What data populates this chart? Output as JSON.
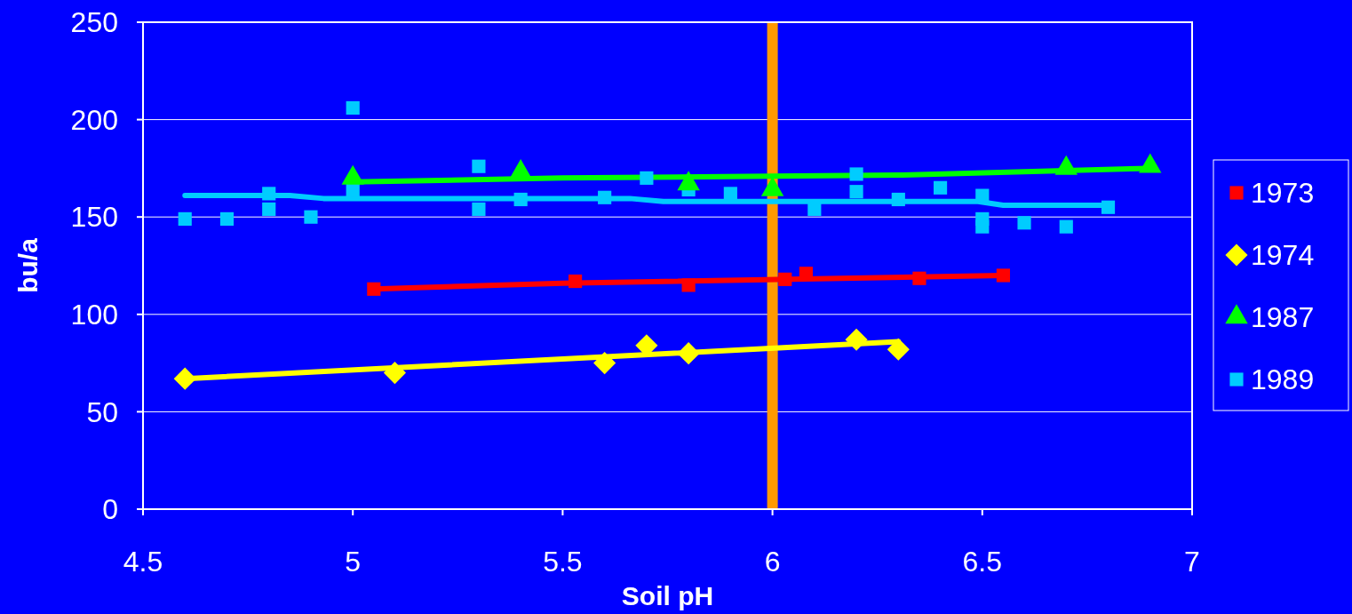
{
  "chart_data": {
    "type": "scatter",
    "xlabel": "Soil pH",
    "ylabel": "bu/a",
    "xlim": [
      4.5,
      7
    ],
    "xticks": [
      4.5,
      5,
      5.5,
      6,
      6.5,
      7
    ],
    "ylim": [
      0,
      250
    ],
    "yticks": [
      0,
      50,
      100,
      150,
      200,
      250
    ],
    "grid": "y",
    "legend": "right",
    "ref_lines": [
      {
        "axis": "x",
        "value": 6,
        "color": "#ff9900"
      }
    ],
    "series": [
      {
        "name": "1973",
        "color": "#ff0000",
        "marker": "square",
        "x": [
          5.05,
          5.53,
          5.8,
          6.03,
          6.08,
          6.35,
          6.55
        ],
        "values": [
          113,
          117,
          115,
          118,
          121,
          118.5,
          120
        ]
      },
      {
        "name": "1974",
        "color": "#ffff00",
        "marker": "diamond",
        "x": [
          4.6,
          5.1,
          5.6,
          5.7,
          5.8,
          6.2,
          6.3
        ],
        "values": [
          67,
          70,
          75,
          84,
          80,
          87,
          82
        ]
      },
      {
        "name": "1987",
        "color": "#00ff00",
        "marker": "triangle",
        "x": [
          5.0,
          5.4,
          5.8,
          6.0,
          6.7,
          6.9
        ],
        "values": [
          170,
          173,
          167,
          164,
          175,
          176
        ]
      },
      {
        "name": "1989",
        "color": "#00ccff",
        "marker": "square",
        "x": [
          4.6,
          4.7,
          4.8,
          4.8,
          4.9,
          5.0,
          5.0,
          5.3,
          5.3,
          5.4,
          5.6,
          5.7,
          5.8,
          5.9,
          6.1,
          6.2,
          6.2,
          6.3,
          6.4,
          6.5,
          6.5,
          6.5,
          6.6,
          6.7,
          6.8
        ],
        "values": [
          149,
          149,
          162,
          154,
          150,
          206,
          164,
          176,
          154,
          159,
          160,
          170,
          164,
          162,
          154,
          172,
          163,
          159,
          165,
          161,
          149,
          145,
          147,
          145,
          155
        ]
      },
      {
        "type": "line",
        "color": "#ff0000",
        "marker": "none",
        "x": [
          5.05,
          5.5,
          6.55
        ],
        "values": [
          113,
          116,
          120
        ]
      },
      {
        "type": "line",
        "color": "#ffff00",
        "marker": "none",
        "x": [
          4.6,
          6.3
        ],
        "values": [
          67,
          86
        ]
      },
      {
        "type": "line",
        "color": "#00ff00",
        "marker": "none",
        "x": [
          5.0,
          5.5,
          6.0,
          6.3,
          6.9
        ],
        "values": [
          168,
          170,
          171,
          171.5,
          175
        ]
      },
      {
        "type": "line",
        "color": "#00ccff",
        "marker": "none",
        "x": [
          4.6,
          4.85,
          4.93,
          5.66,
          5.74,
          6.49,
          6.55,
          6.8
        ],
        "values": [
          161,
          161,
          159.5,
          159.5,
          158,
          158,
          156,
          156
        ]
      }
    ]
  }
}
